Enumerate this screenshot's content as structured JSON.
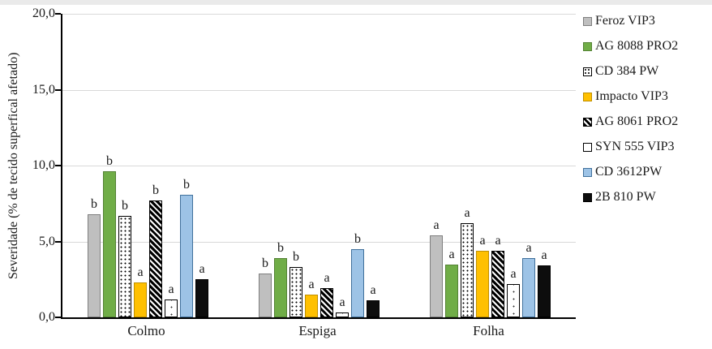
{
  "page": {
    "background": "#ffffff",
    "top_strip_color": "#eaeaea",
    "gridline_color": "#d9d9d9",
    "axis_color": "#000000"
  },
  "chart_data": {
    "type": "bar",
    "title": "",
    "xlabel": "",
    "ylabel": "Severidade (% de tecido superfical afetado)",
    "ylim": [
      0,
      20
    ],
    "ytick_labels": [
      "20,0",
      "15,0",
      "10,0",
      "5,0",
      "0,0"
    ],
    "ytick_values": [
      20,
      15,
      10,
      5,
      0
    ],
    "grid": true,
    "legend_position": "right",
    "categories": [
      "Colmo",
      "Espiga",
      "Folha"
    ],
    "series": [
      {
        "name": "Feroz VIP3",
        "values": [
          6.8,
          2.9,
          5.4
        ],
        "letters": [
          "b",
          "b",
          "a"
        ],
        "fill": "#bfbfbf",
        "border": "#7f7f7f",
        "pattern": "solid"
      },
      {
        "name": "AG 8088 PRO2",
        "values": [
          9.6,
          3.9,
          3.5
        ],
        "letters": [
          "b",
          "b",
          "a"
        ],
        "fill": "#70ad47",
        "border": "#548235",
        "pattern": "solid"
      },
      {
        "name": "CD 384 PW",
        "values": [
          6.7,
          3.3,
          6.2
        ],
        "letters": [
          "b",
          "b",
          "a"
        ],
        "fill": "#ffffff",
        "border": "#000000",
        "pattern": "dots"
      },
      {
        "name": "Impacto VIP3",
        "values": [
          2.3,
          1.5,
          4.4
        ],
        "letters": [
          "a",
          "a",
          "a"
        ],
        "fill": "#ffc000",
        "border": "#bf8f00",
        "pattern": "solid"
      },
      {
        "name": "AG 8061 PRO2",
        "values": [
          7.7,
          1.9,
          4.4
        ],
        "letters": [
          "b",
          "a",
          "a"
        ],
        "fill": "#000000",
        "border": "#000000",
        "pattern": "hatch"
      },
      {
        "name": "SYN 555 VIP3",
        "values": [
          1.2,
          0.3,
          2.2
        ],
        "letters": [
          "a",
          "a",
          "a"
        ],
        "fill": "#ffffff",
        "border": "#000000",
        "pattern": "sparse"
      },
      {
        "name": "CD 3612PW",
        "values": [
          8.1,
          4.5,
          3.9
        ],
        "letters": [
          "b",
          "b",
          "a"
        ],
        "fill": "#9dc3e6",
        "border": "#41719c",
        "pattern": "solid"
      },
      {
        "name": "2B 810 PW",
        "values": [
          2.5,
          1.1,
          3.4
        ],
        "letters": [
          "a",
          "a",
          "a"
        ],
        "fill": "#0d0d0d",
        "border": "#000000",
        "pattern": "solid"
      }
    ]
  }
}
